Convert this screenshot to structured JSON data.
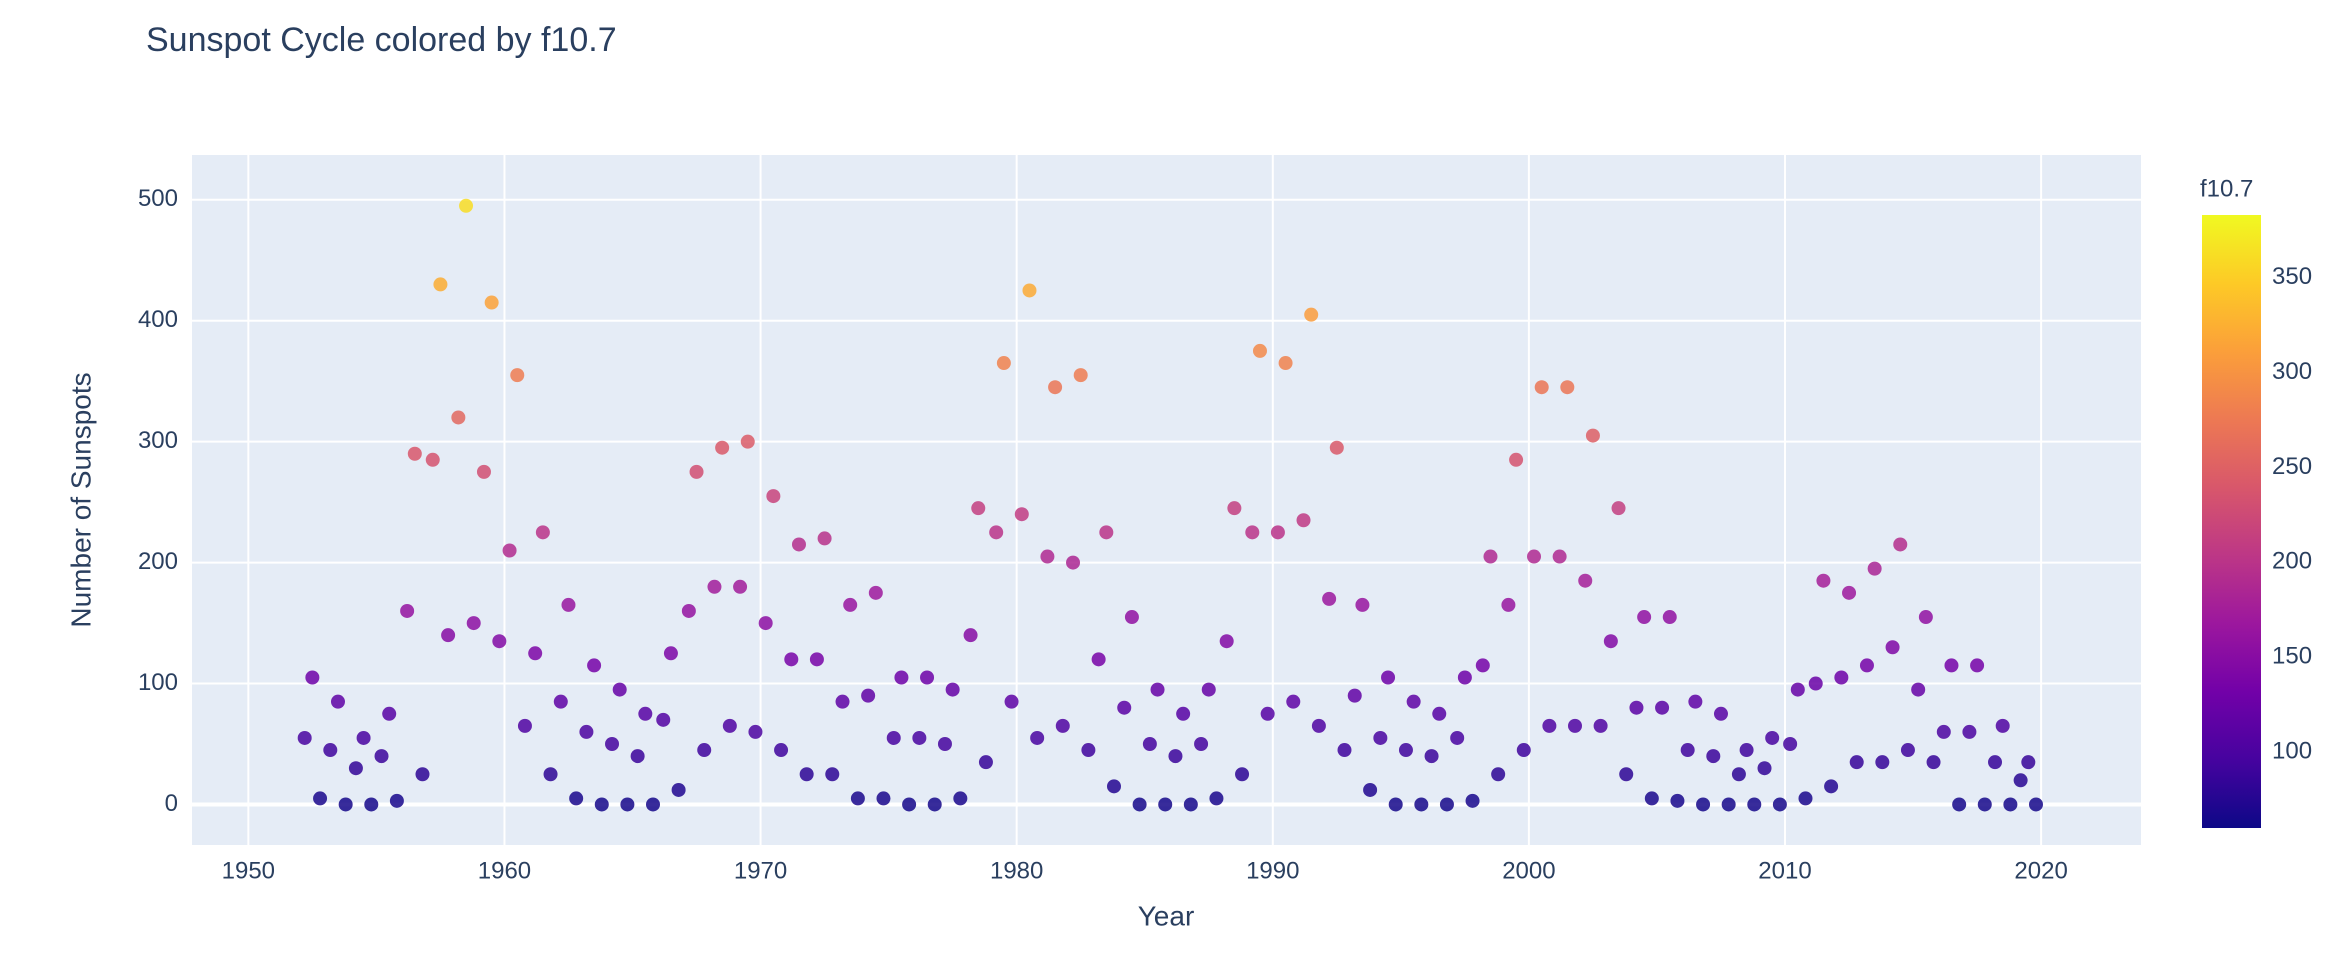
{
  "chart_data": {
    "type": "scatter",
    "title": "Sunspot Cycle colored by f10.7",
    "x_label": "Year",
    "y_label": "Number of Sunspots",
    "colorbar_title": "f10.7",
    "xlim": [
      1947.8,
      2023.9
    ],
    "ylim": [
      -33.5,
      537
    ],
    "xticks": [
      1950,
      1960,
      1970,
      1980,
      1990,
      2000,
      2010,
      2020
    ],
    "yticks": [
      0,
      100,
      200,
      300,
      400,
      500
    ],
    "clim": [
      60,
      383
    ],
    "cticks": [
      100,
      150,
      200,
      250,
      300,
      350
    ],
    "colorscale": [
      "#0d0887",
      "#46039f",
      "#7201a8",
      "#9c179e",
      "#bd3786",
      "#d8576b",
      "#ed7953",
      "#fb9f3a",
      "#fdca26",
      "#f0f921"
    ],
    "grid": true,
    "x": [
      1952.2,
      1952.5,
      1952.8,
      1953.2,
      1953.5,
      1953.8,
      1954.2,
      1954.5,
      1954.8,
      1955.2,
      1955.5,
      1955.8,
      1956.2,
      1956.5,
      1956.8,
      1957.2,
      1957.5,
      1957.8,
      1958.2,
      1958.5,
      1958.8,
      1959.2,
      1959.5,
      1959.8,
      1960.2,
      1960.5,
      1960.8,
      1961.2,
      1961.5,
      1961.8,
      1962.2,
      1962.5,
      1962.8,
      1963.2,
      1963.5,
      1963.8,
      1964.2,
      1964.5,
      1964.8,
      1965.2,
      1965.5,
      1965.8,
      1966.2,
      1966.5,
      1966.8,
      1967.2,
      1967.5,
      1967.8,
      1968.2,
      1968.5,
      1968.8,
      1969.2,
      1969.5,
      1969.8,
      1970.2,
      1970.5,
      1970.8,
      1971.2,
      1971.5,
      1971.8,
      1972.2,
      1972.5,
      1972.8,
      1973.2,
      1973.5,
      1973.8,
      1974.2,
      1974.5,
      1974.8,
      1975.2,
      1975.5,
      1975.8,
      1976.2,
      1976.5,
      1976.8,
      1977.2,
      1977.5,
      1977.8,
      1978.2,
      1978.5,
      1978.8,
      1979.2,
      1979.5,
      1979.8,
      1980.2,
      1980.5,
      1980.8,
      1981.2,
      1981.5,
      1981.8,
      1982.2,
      1982.5,
      1982.8,
      1983.2,
      1983.5,
      1983.8,
      1984.2,
      1984.5,
      1984.8,
      1985.2,
      1985.5,
      1985.8,
      1986.2,
      1986.5,
      1986.8,
      1987.2,
      1987.5,
      1987.8,
      1988.2,
      1988.5,
      1988.8,
      1989.2,
      1989.5,
      1989.8,
      1990.2,
      1990.5,
      1990.8,
      1991.2,
      1991.5,
      1991.8,
      1992.2,
      1992.5,
      1992.8,
      1993.2,
      1993.5,
      1993.8,
      1994.2,
      1994.5,
      1994.8,
      1995.2,
      1995.5,
      1995.8,
      1996.2,
      1996.5,
      1996.8,
      1997.2,
      1997.5,
      1997.8,
      1998.2,
      1998.5,
      1998.8,
      1999.2,
      1999.5,
      1999.8,
      2000.2,
      2000.5,
      2000.8,
      2001.2,
      2001.5,
      2001.8,
      2002.2,
      2002.5,
      2002.8,
      2003.2,
      2003.5,
      2003.8,
      2004.2,
      2004.5,
      2004.8,
      2005.2,
      2005.5,
      2005.8,
      2006.2,
      2006.5,
      2006.8,
      2007.2,
      2007.5,
      2007.8,
      2008.2,
      2008.5,
      2008.8,
      2009.2,
      2009.5,
      2009.8,
      2010.2,
      2010.5,
      2010.8,
      2011.2,
      2011.5,
      2011.8,
      2012.2,
      2012.5,
      2012.8,
      2013.2,
      2013.5,
      2013.8,
      2014.2,
      2014.5,
      2014.8,
      2015.2,
      2015.5,
      2015.8,
      2016.2,
      2016.5,
      2016.8,
      2017.2,
      2017.5,
      2017.8,
      2018.2,
      2018.5,
      2018.8,
      2019.2,
      2019.5,
      2019.8
    ],
    "values": [
      55,
      105,
      5,
      45,
      85,
      0,
      30,
      55,
      0,
      40,
      75,
      3,
      160,
      290,
      25,
      285,
      430,
      140,
      320,
      495,
      150,
      275,
      415,
      135,
      210,
      355,
      65,
      125,
      225,
      25,
      85,
      165,
      5,
      60,
      115,
      0,
      50,
      95,
      0,
      40,
      75,
      0,
      70,
      125,
      12,
      160,
      275,
      45,
      180,
      295,
      65,
      180,
      300,
      60,
      150,
      255,
      45,
      120,
      215,
      25,
      120,
      220,
      25,
      85,
      165,
      5,
      90,
      175,
      5,
      55,
      105,
      0,
      55,
      105,
      0,
      50,
      95,
      5,
      140,
      245,
      35,
      225,
      365,
      85,
      240,
      425,
      55,
      205,
      345,
      65,
      200,
      355,
      45,
      120,
      225,
      15,
      80,
      155,
      0,
      50,
      95,
      0,
      40,
      75,
      0,
      50,
      95,
      5,
      135,
      245,
      25,
      225,
      375,
      75,
      225,
      365,
      85,
      235,
      405,
      65,
      170,
      295,
      45,
      90,
      165,
      12,
      55,
      105,
      0,
      45,
      85,
      0,
      40,
      75,
      0,
      55,
      105,
      3,
      115,
      205,
      25,
      165,
      285,
      45,
      205,
      345,
      65,
      205,
      345,
      65,
      185,
      305,
      65,
      135,
      245,
      25,
      80,
      155,
      5,
      80,
      155,
      3,
      45,
      85,
      0,
      40,
      75,
      0,
      25,
      45,
      0,
      30,
      55,
      0,
      50,
      95,
      5,
      100,
      185,
      15,
      105,
      175,
      35,
      115,
      195,
      35,
      130,
      215,
      45,
      95,
      155,
      35,
      60,
      115,
      0,
      60,
      115,
      0,
      35,
      65,
      0,
      20,
      35,
      0
    ],
    "color_values": [
      98,
      128,
      68,
      92,
      116,
      65,
      83,
      98,
      65,
      89,
      110,
      67,
      161,
      239,
      80,
      236,
      323,
      149,
      257,
      362,
      155,
      230,
      314,
      146,
      191,
      278,
      104,
      140,
      200,
      80,
      116,
      164,
      68,
      101,
      134,
      65,
      95,
      122,
      65,
      89,
      110,
      65,
      107,
      140,
      72,
      161,
      230,
      92,
      173,
      242,
      104,
      173,
      245,
      101,
      155,
      218,
      92,
      137,
      194,
      80,
      137,
      197,
      80,
      116,
      164,
      68,
      119,
      170,
      68,
      98,
      128,
      65,
      98,
      128,
      65,
      95,
      122,
      68,
      149,
      212,
      86,
      200,
      284,
      116,
      209,
      320,
      98,
      188,
      272,
      104,
      185,
      278,
      92,
      137,
      200,
      74,
      113,
      158,
      65,
      95,
      122,
      65,
      89,
      110,
      65,
      95,
      122,
      68,
      146,
      212,
      80,
      200,
      290,
      110,
      200,
      284,
      116,
      206,
      308,
      104,
      167,
      242,
      92,
      119,
      164,
      72,
      98,
      128,
      65,
      92,
      116,
      65,
      89,
      110,
      65,
      98,
      128,
      67,
      134,
      188,
      80,
      164,
      236,
      92,
      188,
      272,
      104,
      188,
      272,
      104,
      176,
      248,
      104,
      146,
      212,
      80,
      113,
      158,
      68,
      113,
      158,
      67,
      92,
      116,
      65,
      89,
      110,
      65,
      80,
      92,
      65,
      83,
      98,
      65,
      95,
      122,
      68,
      125,
      176,
      74,
      128,
      170,
      86,
      134,
      182,
      86,
      143,
      194,
      92,
      122,
      158,
      86,
      101,
      134,
      65,
      101,
      134,
      65,
      86,
      104,
      65,
      77,
      86,
      65
    ]
  }
}
